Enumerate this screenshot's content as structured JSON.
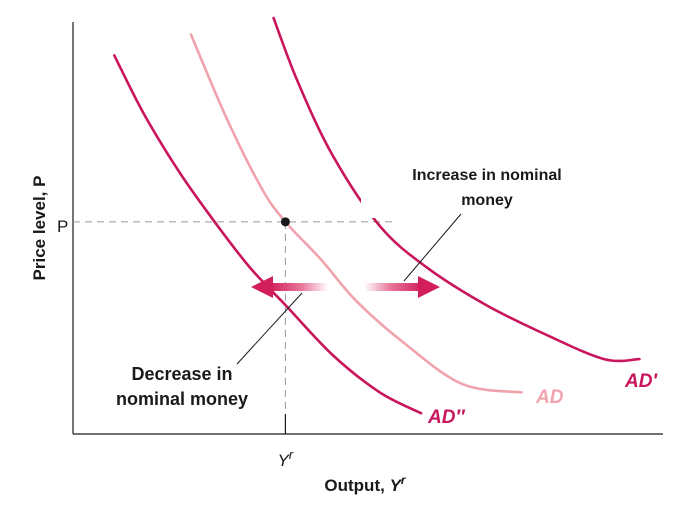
{
  "chart_data": {
    "type": "line",
    "title": "",
    "xlabel_main": "Output, ",
    "xlabel_sym": "Y",
    "xlabel_sup": "r",
    "ylabel": "Price level, P",
    "xlim": [
      0,
      100
    ],
    "ylim": [
      0,
      100
    ],
    "y_tick": {
      "label": "P",
      "value": 51
    },
    "x_tick": {
      "label_sym": "Y",
      "label_sup": "r",
      "value": 36
    },
    "point": {
      "x": 36,
      "y": 51
    },
    "series": [
      {
        "name": "AD″",
        "color": "#c8155c",
        "x": [
          7,
          12,
          18,
          24,
          30,
          36,
          44,
          52,
          59
        ],
        "y": [
          91,
          77,
          63,
          51,
          40,
          31,
          19,
          10,
          5
        ]
      },
      {
        "name": "AD",
        "color": "#f0a3ad",
        "x": [
          20,
          26,
          32,
          36,
          42,
          48,
          56,
          66,
          76
        ],
        "y": [
          96,
          76,
          59,
          51,
          42,
          32,
          22,
          12,
          10
        ]
      },
      {
        "name": "AD′",
        "color": "#c8155c",
        "x": [
          34,
          38,
          44,
          52,
          60,
          70,
          80,
          90,
          96
        ],
        "y": [
          100,
          85,
          67,
          50,
          40,
          31,
          24,
          18,
          18
        ]
      }
    ],
    "annotations": {
      "increase_line1": "Increase in nominal",
      "increase_line2": "money",
      "decrease_line1": "Decrease in",
      "decrease_line2": "nominal money"
    },
    "colors": {
      "curve_dark": "#c8155c",
      "curve_light": "#f0a3ad",
      "arrow": "#d21f5b",
      "axis": "#1a1a1a",
      "guide": "#999999"
    }
  }
}
